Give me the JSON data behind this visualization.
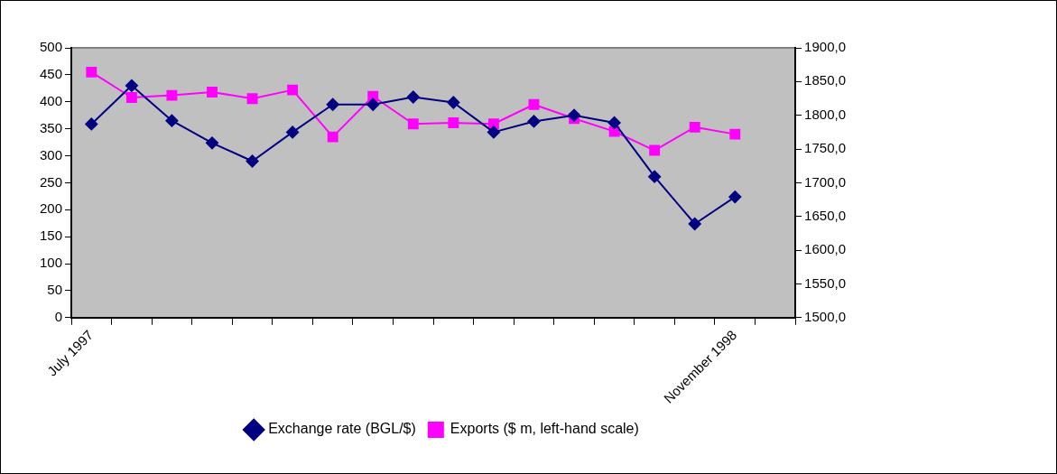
{
  "chart_data": {
    "type": "line",
    "categories": [
      "July 1997",
      null,
      null,
      null,
      null,
      null,
      null,
      null,
      null,
      null,
      null,
      null,
      null,
      null,
      null,
      null,
      "November 1998",
      null
    ],
    "series": [
      {
        "name": "Exports ($ m, left-hand scale)",
        "color": "#ff00ff",
        "marker": "square",
        "values": [
          455,
          408,
          412,
          418,
          406,
          422,
          335,
          410,
          359,
          361,
          359,
          395,
          369,
          345,
          310,
          353,
          340,
          null
        ]
      },
      {
        "name": "Exchange rate (BGL/$)",
        "color": "#000080",
        "marker": "diamond",
        "axis": "y2",
        "values": [
          1787,
          1844,
          1792,
          1759,
          1732,
          1775,
          1816,
          1816,
          1827,
          1819,
          1775,
          1791,
          1800,
          1789,
          1709,
          1639,
          1679,
          null
        ]
      }
    ],
    "ylim": [
      0,
      500
    ],
    "yticks": [
      0,
      50,
      100,
      150,
      200,
      250,
      300,
      350,
      400,
      450,
      500
    ],
    "y2lim": [
      1500,
      1900
    ],
    "y2ticks": [
      {
        "value": 1500,
        "label": "1500,0"
      },
      {
        "value": 1550,
        "label": "1550,0"
      },
      {
        "value": 1600,
        "label": "1600,0"
      },
      {
        "value": 1650,
        "label": "1650,0"
      },
      {
        "value": 1700,
        "label": "1700,0"
      },
      {
        "value": 1750,
        "label": "1750,0"
      },
      {
        "value": 1800,
        "label": "1800,0"
      },
      {
        "value": 1850,
        "label": "1850,0"
      },
      {
        "value": 1900,
        "label": "1900,0"
      }
    ],
    "grid": false,
    "legend": "bottom",
    "line_style": "solid"
  }
}
